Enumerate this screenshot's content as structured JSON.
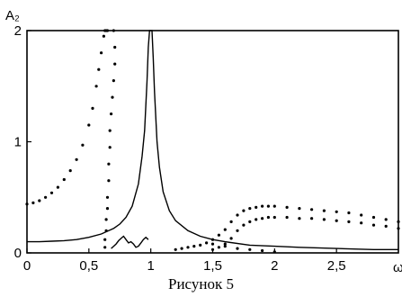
{
  "chart_data": {
    "type": "line",
    "title": "",
    "caption": "Рисунок 5",
    "xlabel": "ω",
    "ylabel": "A₂",
    "xlim": [
      0,
      3
    ],
    "ylim": [
      0,
      2
    ],
    "x_ticks": [
      0,
      0.5,
      1,
      1.5,
      2,
      2.5
    ],
    "x_tick_labels": [
      "0",
      "0,5",
      "1",
      "1,5",
      "2",
      "2,5"
    ],
    "y_ticks": [
      0,
      1,
      2
    ],
    "y_tick_labels": [
      "0",
      "1",
      "2"
    ],
    "grid": false,
    "legend": "none",
    "series": [
      {
        "style": "solid",
        "color": "#000000",
        "x": [
          0,
          0.1,
          0.2,
          0.3,
          0.4,
          0.5,
          0.6,
          0.7,
          0.75,
          0.8,
          0.85,
          0.9,
          0.93,
          0.95,
          0.97,
          0.98,
          0.99,
          0.995,
          1.005,
          1.01,
          1.02,
          1.03,
          1.05,
          1.07,
          1.1,
          1.15,
          1.2,
          1.3,
          1.4,
          1.5,
          1.6,
          1.8,
          2.0,
          2.2,
          2.5,
          2.8,
          3.0
        ],
        "y": [
          0.1,
          0.1,
          0.105,
          0.11,
          0.12,
          0.14,
          0.17,
          0.22,
          0.26,
          0.32,
          0.42,
          0.62,
          0.87,
          1.1,
          1.55,
          1.85,
          2.0,
          2.0,
          2.0,
          2.0,
          1.75,
          1.45,
          1.0,
          0.77,
          0.55,
          0.38,
          0.29,
          0.2,
          0.15,
          0.12,
          0.1,
          0.07,
          0.06,
          0.05,
          0.04,
          0.03,
          0.03
        ]
      },
      {
        "style": "solid",
        "color": "#000000",
        "x": [
          0.68,
          0.7,
          0.72,
          0.74,
          0.76,
          0.78,
          0.8,
          0.82,
          0.84,
          0.86,
          0.88,
          0.9,
          0.92,
          0.94,
          0.96,
          0.98
        ],
        "y": [
          0.04,
          0.06,
          0.08,
          0.11,
          0.13,
          0.15,
          0.12,
          0.09,
          0.1,
          0.08,
          0.05,
          0.06,
          0.09,
          0.12,
          0.14,
          0.12
        ]
      },
      {
        "style": "dotted",
        "color": "#000000",
        "x": [
          0,
          0.05,
          0.1,
          0.15,
          0.2,
          0.25,
          0.3,
          0.35,
          0.4,
          0.45,
          0.5,
          0.53,
          0.56,
          0.58,
          0.6,
          0.62,
          0.63,
          0.64,
          0.65
        ],
        "y": [
          0.44,
          0.45,
          0.47,
          0.5,
          0.54,
          0.59,
          0.66,
          0.74,
          0.84,
          0.97,
          1.15,
          1.3,
          1.5,
          1.65,
          1.8,
          1.95,
          2.0,
          2.0,
          2.0
        ]
      },
      {
        "style": "dotted",
        "color": "#000000",
        "x": [
          0.7,
          0.71,
          0.71,
          0.7,
          0.69,
          0.68,
          0.67,
          0.67,
          0.66,
          0.66,
          0.65,
          0.65,
          0.64,
          0.64,
          0.63,
          0.63
        ],
        "y": [
          2.0,
          1.85,
          1.7,
          1.55,
          1.4,
          1.25,
          1.1,
          0.95,
          0.8,
          0.65,
          0.5,
          0.4,
          0.3,
          0.2,
          0.12,
          0.05
        ]
      },
      {
        "style": "dotted",
        "color": "#000000",
        "x": [
          1.2,
          1.25,
          1.3,
          1.35,
          1.4,
          1.45,
          1.5,
          1.55,
          1.6,
          1.65,
          1.7,
          1.75,
          1.8,
          1.85,
          1.9,
          1.95,
          2.0,
          2.1,
          2.2,
          2.3,
          2.4,
          2.5,
          2.6,
          2.7,
          2.8,
          2.9,
          3.0
        ],
        "y": [
          0.03,
          0.04,
          0.05,
          0.06,
          0.07,
          0.09,
          0.12,
          0.16,
          0.21,
          0.28,
          0.34,
          0.38,
          0.4,
          0.41,
          0.42,
          0.42,
          0.42,
          0.41,
          0.4,
          0.39,
          0.38,
          0.37,
          0.36,
          0.34,
          0.32,
          0.3,
          0.28
        ]
      },
      {
        "style": "dotted",
        "color": "#000000",
        "x": [
          1.5,
          1.55,
          1.6,
          1.65,
          1.7,
          1.75,
          1.8,
          1.85,
          1.9,
          1.95,
          2.0,
          2.1,
          2.2,
          2.3,
          2.4,
          2.5,
          2.6,
          2.7,
          2.8,
          2.9,
          3.0
        ],
        "y": [
          0.03,
          0.05,
          0.08,
          0.13,
          0.2,
          0.25,
          0.28,
          0.3,
          0.31,
          0.32,
          0.32,
          0.32,
          0.31,
          0.31,
          0.3,
          0.29,
          0.28,
          0.27,
          0.25,
          0.24,
          0.22
        ]
      },
      {
        "style": "dotted",
        "color": "#000000",
        "x": [
          1.5,
          1.6,
          1.7,
          1.8,
          1.9,
          2.0
        ],
        "y": [
          0.08,
          0.06,
          0.04,
          0.03,
          0.02,
          0.01
        ]
      }
    ]
  }
}
